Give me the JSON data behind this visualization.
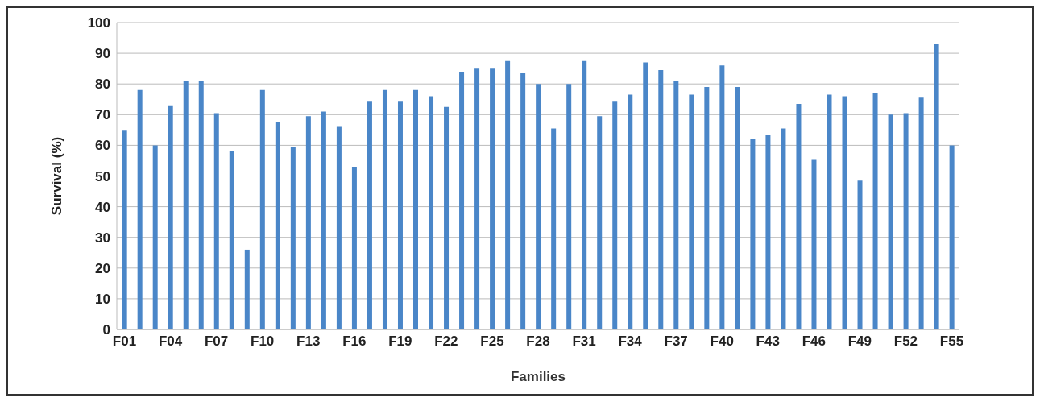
{
  "chart_data": {
    "type": "bar",
    "xlabel": "Families",
    "ylabel": "Survival (%)",
    "categories": [
      "F01",
      null,
      null,
      "F04",
      null,
      null,
      "F07",
      null,
      null,
      "F10",
      null,
      null,
      "F13",
      null,
      null,
      "F16",
      null,
      null,
      "F19",
      null,
      null,
      "F22",
      null,
      null,
      "F25",
      null,
      null,
      "F28",
      null,
      null,
      "F31",
      null,
      null,
      "F34",
      null,
      null,
      "F37",
      null,
      null,
      "F40",
      null,
      null,
      "F43",
      null,
      null,
      "F46",
      null,
      null,
      "F49",
      null,
      null,
      "F52",
      null,
      null,
      "F55"
    ],
    "values": [
      65,
      78,
      60,
      73,
      81,
      81,
      70.5,
      58,
      26,
      78,
      67.5,
      59.5,
      69.5,
      71,
      66,
      53,
      74.5,
      78,
      74.5,
      78,
      76,
      72.5,
      84,
      85,
      85,
      87.5,
      83.5,
      80,
      65.5,
      80,
      87.5,
      69.5,
      74.5,
      76.5,
      87,
      84.5,
      81,
      76.5,
      79,
      86,
      79,
      62,
      63.5,
      65.5,
      73.5,
      55.5,
      76.5,
      76,
      48.5,
      77,
      70,
      70.5,
      75.5,
      93,
      60
    ],
    "color": "#4a86c8",
    "ylim": [
      0,
      100
    ],
    "yticks": [
      0,
      10,
      20,
      30,
      40,
      50,
      60,
      70,
      80,
      90,
      100
    ],
    "grid": "y"
  }
}
